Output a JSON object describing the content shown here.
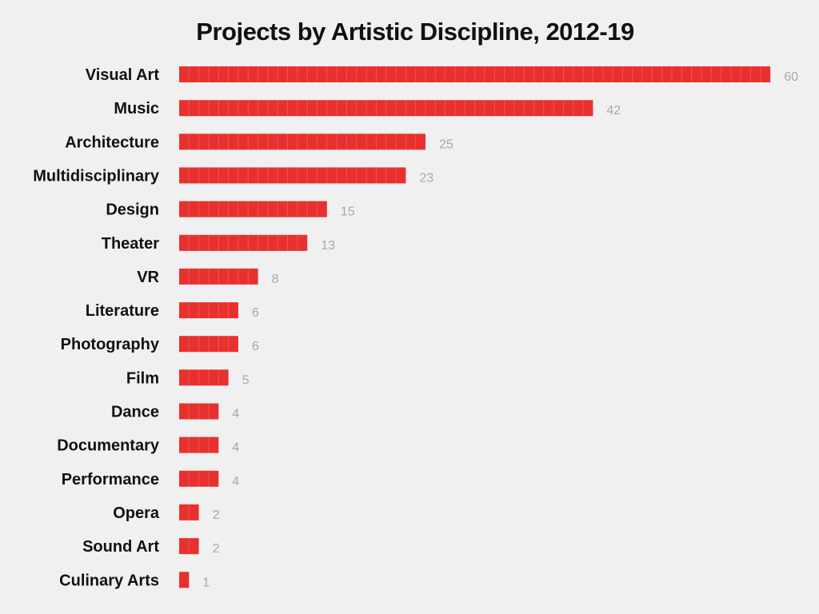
{
  "chart_data": {
    "type": "bar",
    "orientation": "horizontal",
    "title": "Projects by Artistic Discipline, 2012-19",
    "xlabel": "",
    "ylabel": "",
    "categories": [
      "Visual Art",
      "Music",
      "Architecture",
      "Multidisciplinary",
      "Design",
      "Theater",
      "VR",
      "Literature",
      "Photography",
      "Film",
      "Dance",
      "Documentary",
      "Performance",
      "Opera",
      "Sound Art",
      "Culinary Arts"
    ],
    "values": [
      60,
      42,
      25,
      23,
      15,
      13,
      8,
      6,
      6,
      5,
      4,
      4,
      4,
      2,
      2,
      1
    ],
    "xlim": [
      0,
      60
    ],
    "grid": false,
    "legend": "none",
    "data_labels": true
  },
  "colors": {
    "bar": "#e8302e",
    "value_label": "#a8a8a8",
    "category_label": "#111111",
    "background": "#f0f0f0"
  }
}
